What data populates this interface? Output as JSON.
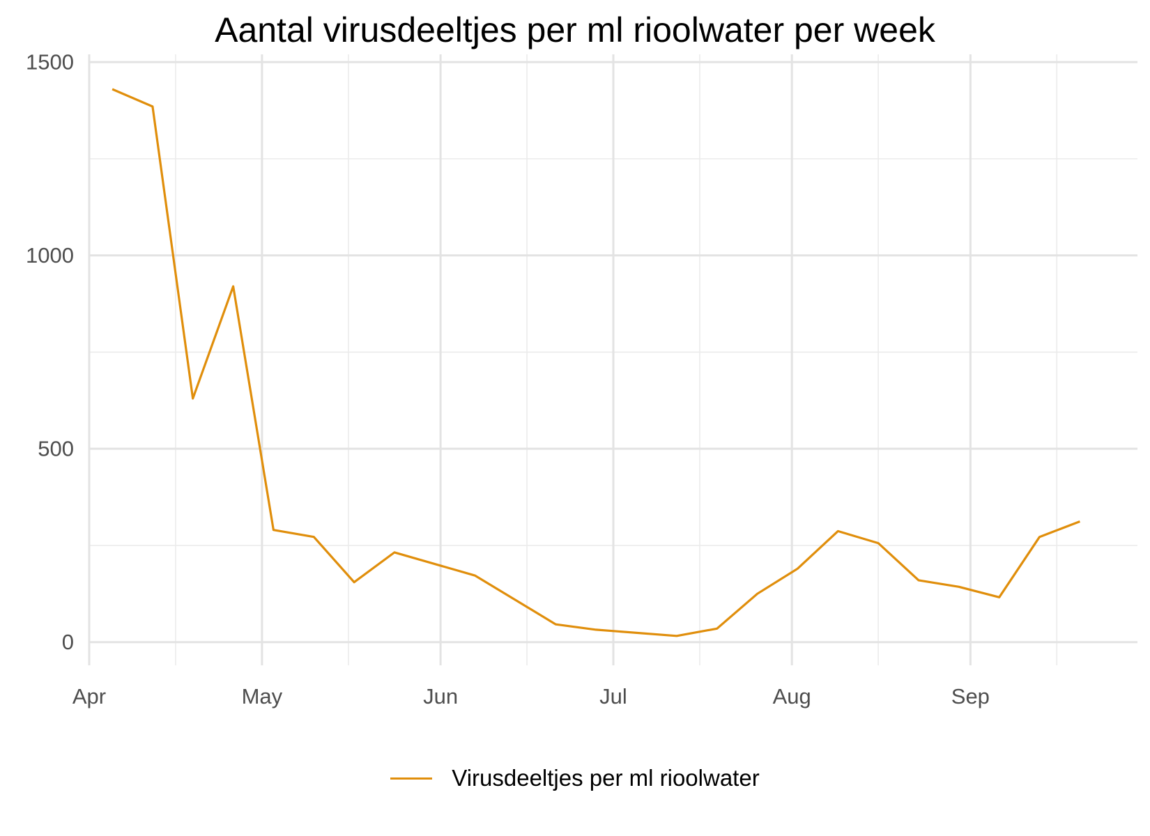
{
  "chart_data": {
    "type": "line",
    "title": "Aantal virusdeeltjes per ml rioolwater per week",
    "xlabel": "",
    "ylabel": "",
    "x_axis_type": "date",
    "xlim": [
      "2021-04-01",
      "2021-09-30"
    ],
    "ylim": [
      -60,
      1520
    ],
    "y_ticks": [
      0,
      500,
      1000,
      1500
    ],
    "y_tick_labels": [
      "0",
      "500",
      "1000",
      "1500"
    ],
    "y_minor_ticks": [
      250,
      750,
      1250
    ],
    "x_ticks": [
      "2021-04-01",
      "2021-05-01",
      "2021-06-01",
      "2021-07-01",
      "2021-08-01",
      "2021-09-01"
    ],
    "x_tick_labels": [
      "Apr",
      "May",
      "Jun",
      "Jul",
      "Aug",
      "Sep"
    ],
    "x_minor_ticks": [
      "2021-04-16",
      "2021-05-16",
      "2021-06-16",
      "2021-07-16",
      "2021-08-16",
      "2021-09-16"
    ],
    "grid": true,
    "legend_position": "bottom",
    "series": [
      {
        "name": "Virusdeeltjes per ml rioolwater",
        "color": "#E08E0B",
        "x": [
          "2021-04-05",
          "2021-04-12",
          "2021-04-19",
          "2021-04-26",
          "2021-05-03",
          "2021-05-10",
          "2021-05-17",
          "2021-05-24",
          "2021-06-07",
          "2021-06-21",
          "2021-06-28",
          "2021-07-12",
          "2021-07-19",
          "2021-07-26",
          "2021-08-02",
          "2021-08-09",
          "2021-08-16",
          "2021-08-23",
          "2021-08-30",
          "2021-09-06",
          "2021-09-13",
          "2021-09-20"
        ],
        "values": [
          1430,
          1385,
          630,
          920,
          290,
          272,
          155,
          232,
          172,
          46,
          32,
          16,
          35,
          125,
          190,
          287,
          256,
          160,
          143,
          116,
          272,
          312
        ]
      }
    ]
  }
}
